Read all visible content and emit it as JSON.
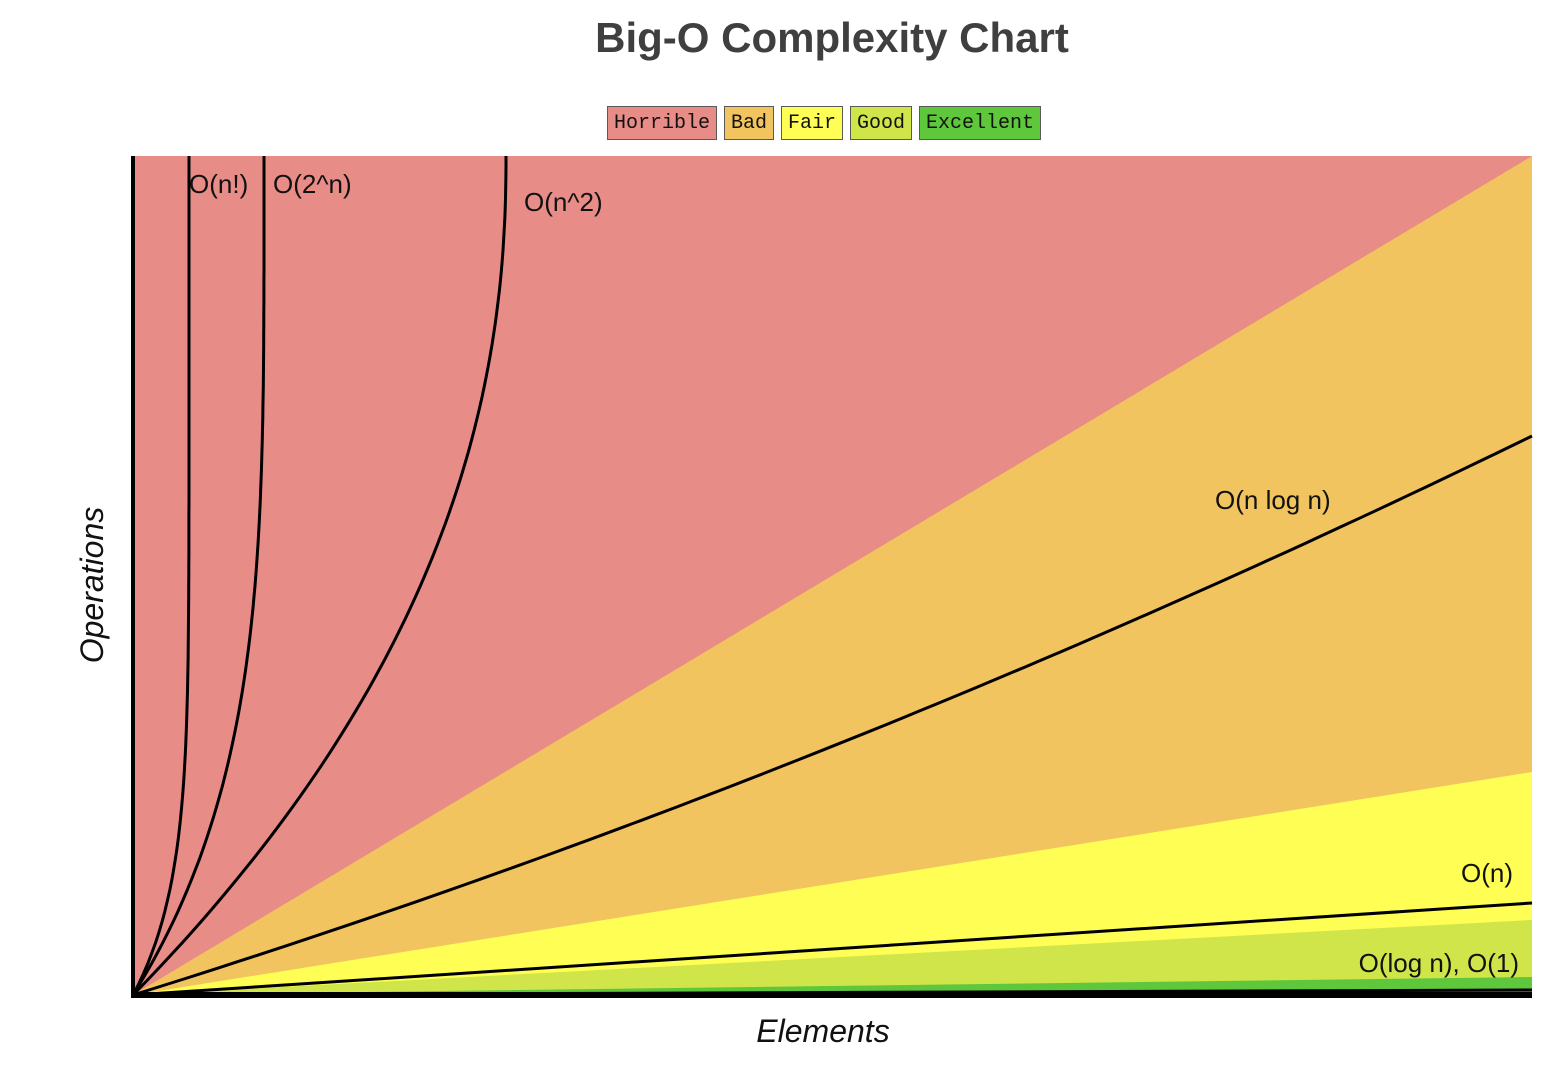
{
  "chart_data": {
    "type": "area",
    "title": "Big-O Complexity Chart",
    "xlabel": "Elements",
    "ylabel": "Operations",
    "grid": false,
    "legend_position": "top",
    "legend": [
      {
        "name": "Horrible",
        "color": "#e88c88"
      },
      {
        "name": "Bad",
        "color": "#f2c45f"
      },
      {
        "name": "Fair",
        "color": "#fefe55"
      },
      {
        "name": "Good",
        "color": "#cfe54a"
      },
      {
        "name": "Excellent",
        "color": "#5ec73b"
      }
    ],
    "curves": [
      {
        "label": "O(n!)",
        "kind": "factorial"
      },
      {
        "label": "O(2^n)",
        "kind": "exponential"
      },
      {
        "label": "O(n^2)",
        "kind": "quadratic"
      },
      {
        "label": "O(n log n)",
        "kind": "nlogn"
      },
      {
        "label": "O(n)",
        "kind": "linear"
      },
      {
        "label": "O(log n), O(1)",
        "kind": "log_const"
      }
    ]
  }
}
